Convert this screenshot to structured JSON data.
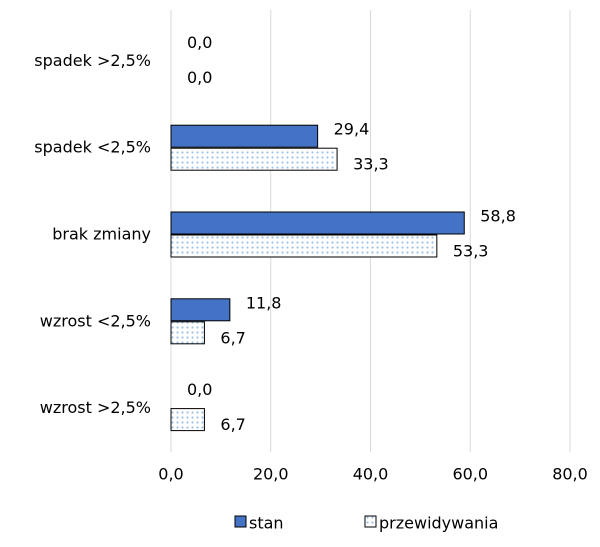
{
  "chart_data": {
    "type": "hbar",
    "categories": [
      "spadek >2,5%",
      "spadek <2,5%",
      "brak zmiany",
      "wzrost <2,5%",
      "wzrost >2,5%"
    ],
    "series": [
      {
        "name": "stan",
        "color": "#4472c4",
        "values": [
          0.0,
          29.4,
          58.8,
          11.8,
          0.0
        ],
        "value_labels": [
          "0,0",
          "29,4",
          "58,8",
          "11,8",
          "0,0"
        ]
      },
      {
        "name": "przewidywania",
        "color": "#9dc3e6",
        "values": [
          0.0,
          33.3,
          53.3,
          6.7,
          6.7
        ],
        "value_labels": [
          "0,0",
          "33,3",
          "53,3",
          "6,7",
          "6,7"
        ]
      }
    ],
    "xlim": [
      0,
      80
    ],
    "xticks": [
      {
        "value": 0,
        "label": "0,0"
      },
      {
        "value": 20,
        "label": "20,0"
      },
      {
        "value": 40,
        "label": "40,0"
      },
      {
        "value": 60,
        "label": "60,0"
      },
      {
        "value": 80,
        "label": "80,0"
      }
    ],
    "grid": true,
    "legend": "bottom"
  }
}
